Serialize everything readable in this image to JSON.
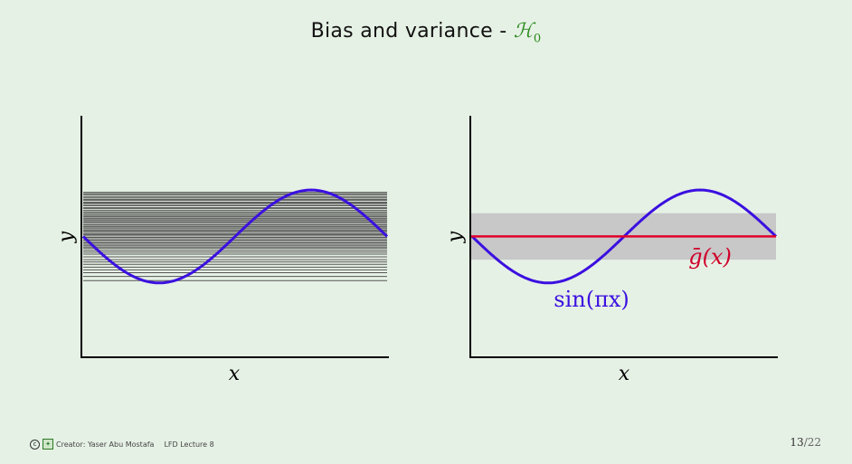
{
  "slide": {
    "title_text": "Bias and variance - ",
    "title_symbol": "ℋ",
    "title_subscript": "0"
  },
  "left_plot": {
    "xlabel": "x",
    "ylabel": "y"
  },
  "right_plot": {
    "xlabel": "x",
    "ylabel": "y",
    "curve_label": "sin(πx)",
    "mean_label": "ḡ(x)"
  },
  "footer": {
    "creator": "Creator: Yaser Abu Mostafa",
    "lecture": "LFD Lecture 8",
    "page_current": "13",
    "page_total": "/22"
  },
  "colors": {
    "background": "#e6f1e5",
    "title_accent": "#2a8a1e",
    "sine_curve": "#3b10e0",
    "mean_line": "#e0002a",
    "variance_band": "#c8c8c8",
    "hypothesis_lines": "#555555",
    "axes": "#000000"
  },
  "chart_data": [
    {
      "type": "line",
      "description_series": "target sine with many constant hypotheses",
      "target": {
        "function": "sin(pi x)",
        "x_range": [
          -1,
          1
        ]
      },
      "constant_hypotheses": [
        0.95,
        0.92,
        0.9,
        0.86,
        0.83,
        0.8,
        0.78,
        0.74,
        0.72,
        0.69,
        0.66,
        0.62,
        0.6,
        0.56,
        0.53,
        0.5,
        0.47,
        0.44,
        0.42,
        0.39,
        0.36,
        0.34,
        0.31,
        0.28,
        0.25,
        0.22,
        0.2,
        0.17,
        0.14,
        0.12,
        0.09,
        0.06,
        0.04,
        0.01,
        -0.02,
        -0.05,
        -0.08,
        -0.11,
        -0.14,
        -0.17,
        -0.2,
        -0.23,
        -0.26,
        -0.3,
        -0.34,
        -0.38,
        -0.44,
        -0.5,
        -0.55,
        -0.6,
        -0.66,
        -0.72,
        -0.78,
        -0.86,
        -0.95
      ],
      "xlim": [
        -1,
        1
      ],
      "ylim": [
        -2.6,
        2.5
      ]
    },
    {
      "type": "line",
      "target": {
        "function": "sin(pi x)",
        "x_range": [
          -1,
          1
        ]
      },
      "mean_hypothesis": 0.0,
      "variance_band": [
        -0.5,
        0.5
      ],
      "xlim": [
        -1,
        1
      ],
      "ylim": [
        -2.6,
        2.5
      ]
    }
  ]
}
